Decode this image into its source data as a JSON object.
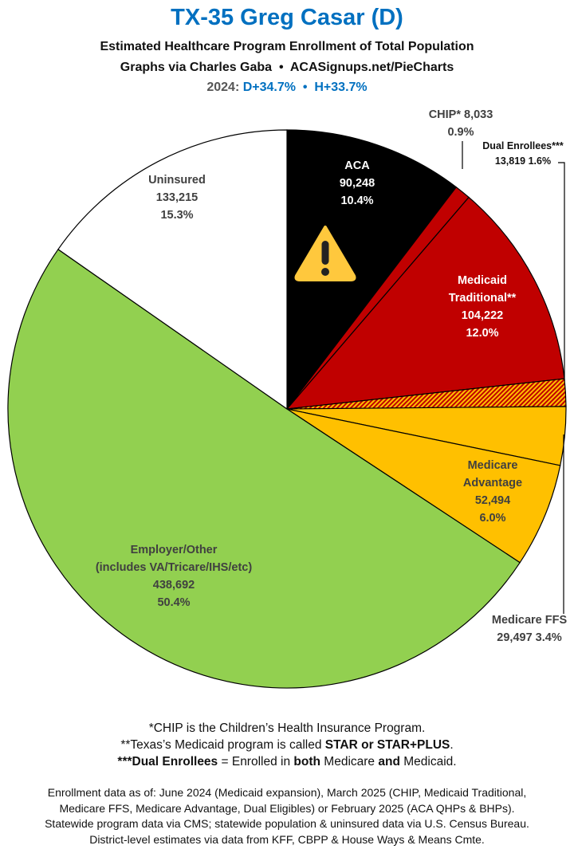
{
  "header": {
    "title": "TX-35 Greg Casar (D)",
    "subtitle": "Estimated Healthcare Program Enrollment of Total Population",
    "credit": "Graphs via Charles Gaba  •  ACASignups.net/PieCharts",
    "year_label": "2024:",
    "partisan": "D+34.7%  •  H+33.7%"
  },
  "chart_data": {
    "type": "pie",
    "start": "12 o'clock, clockwise",
    "slices": [
      {
        "label": "ACA",
        "value": 90248,
        "pct": "10.4%",
        "color": "#000000",
        "text_color": "#ffffff",
        "icon": "warning-icon"
      },
      {
        "label": "CHIP*",
        "value": 8033,
        "pct": "0.9%",
        "color": "#c00000",
        "text_color": "#404040"
      },
      {
        "label": "Medicaid Traditional**",
        "value": 104222,
        "pct": "12.0%",
        "color": "#c00000",
        "text_color": "#ffffff"
      },
      {
        "label": "Dual Enrollees***",
        "value": 13819,
        "pct": "1.6%",
        "color": "#c00000",
        "pattern": "hatched orange",
        "text_color": "#111111"
      },
      {
        "label": "Medicare FFS",
        "value": 29497,
        "pct": "3.4%",
        "color": "#ffc000",
        "text_color": "#404040"
      },
      {
        "label": "Medicare Advantage",
        "value": 52494,
        "pct": "6.0%",
        "color": "#ffc000",
        "text_color": "#404040"
      },
      {
        "label": "Employer/Other",
        "sublabel": "(includes VA/Tricare/IHS/etc)",
        "value": 438692,
        "pct": "50.4%",
        "color": "#92d050",
        "text_color": "#404040"
      },
      {
        "label": "Uninsured",
        "value": 133215,
        "pct": "15.3%",
        "color": "#ffffff",
        "text_color": "#404040"
      }
    ],
    "display": {
      "aca": [
        "ACA",
        "90,248",
        "10.4%"
      ],
      "chip": [
        "CHIP* 8,033",
        "0.9%"
      ],
      "medicaid": [
        "Medicaid",
        "Traditional**",
        "104,222",
        "12.0%"
      ],
      "dual": [
        "Dual Enrollees***",
        "13,819 1.6%"
      ],
      "ffs": [
        "Medicare FFS",
        "29,497 3.4%"
      ],
      "ma": [
        "Medicare",
        "Advantage",
        "52,494",
        "6.0%"
      ],
      "employer": [
        "Employer/Other",
        "(includes VA/Tricare/IHS/etc)",
        "438,692",
        "50.4%"
      ],
      "uninsured": [
        "Uninsured",
        "133,215",
        "15.3%"
      ]
    }
  },
  "notes": {
    "n1": "*CHIP is the Children’s Health Insurance Program.",
    "n2a": "**Texas’s Medicaid program is called ",
    "n2b": "STAR or STAR+PLUS",
    "n2c": ".",
    "n3a": "***Dual Enrollees",
    "n3b": " = Enrolled in ",
    "n3c": "both",
    "n3d": " Medicare ",
    "n3e": "and",
    "n3f": " Medicaid."
  },
  "source": [
    "Enrollment data as of: June 2024 (Medicaid expansion), March 2025 (CHIP, Medicaid Traditional,",
    "Medicare FFS, Medicare Advantage, Dual Eligibles) or February 2025 (ACA QHPs & BHPs).",
    "Statewide program data via CMS; statewide population & uninsured data via U.S. Census Bureau.",
    "District-level estimates via data from KFF, CBPP & House Ways & Means Cmte."
  ]
}
